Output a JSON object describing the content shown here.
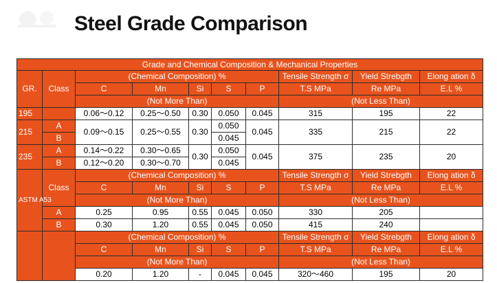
{
  "page": {
    "title": "Steel Grade Comparison"
  },
  "table": {
    "banner": "Grade and Chemical Composition & Mechanical Properties",
    "h_gr": "GR.",
    "h_class": "Class",
    "h_chem": "(Chemical Composition)  %",
    "h_tensile": "Tensile Strength σ",
    "h_yield": "Yield Strebgth",
    "h_elong": "Elong ation δ",
    "h_c": "C",
    "h_mn": "Mn",
    "h_si": "Si",
    "h_s": "S",
    "h_p": "P",
    "h_ts": "T.S MPa",
    "h_re": "Re MPa",
    "h_el": "E.L %",
    "h_nmt": "(Not More Than)",
    "h_nlt": "(Not Less Than)",
    "g195": {
      "gr": "195",
      "c": "0.06～0.12",
      "mn": "0.25～0.50",
      "si": "0.30",
      "s": "0.050",
      "p": "0.045",
      "ts": "315",
      "re": "195",
      "el": "22"
    },
    "g215": {
      "gr": "215",
      "cA": "A",
      "cB": "B",
      "c": "0.09～0.15",
      "mn": "0.25～0.55",
      "si": "0.30",
      "sA": "0.050",
      "sB": "0.045",
      "p": "0.045",
      "ts": "335",
      "re": "215",
      "el": "22"
    },
    "g235": {
      "gr": "235",
      "cA": "A",
      "cB": "B",
      "cA_val": "0.14～0.22",
      "mnA": "0.30～0.65",
      "cB_val": "0.12～0.20",
      "mnB": "0.30～0.70",
      "si": "0.30",
      "sA": "0.050",
      "sB": "0.045",
      "p": "0.045",
      "ts": "375",
      "re": "235",
      "el": "20"
    },
    "astm": {
      "gr": "ASTM A53",
      "A": {
        "cls": "A",
        "c": "0.25",
        "mn": "0.95",
        "si": "0.55",
        "s": "0.045",
        "p": "0.050",
        "ts": "330",
        "re": "205",
        "el": ""
      },
      "B": {
        "cls": "B",
        "c": "0.30",
        "mn": "1.20",
        "si": "0.55",
        "s": "0.045",
        "p": "0.050",
        "ts": "415",
        "re": "240",
        "el": ""
      }
    },
    "last": {
      "c": "0.20",
      "mn": "1.20",
      "si": "-",
      "s": "0.045",
      "p": "0.045",
      "ts": "320～460",
      "re": "195",
      "el": "20"
    }
  }
}
